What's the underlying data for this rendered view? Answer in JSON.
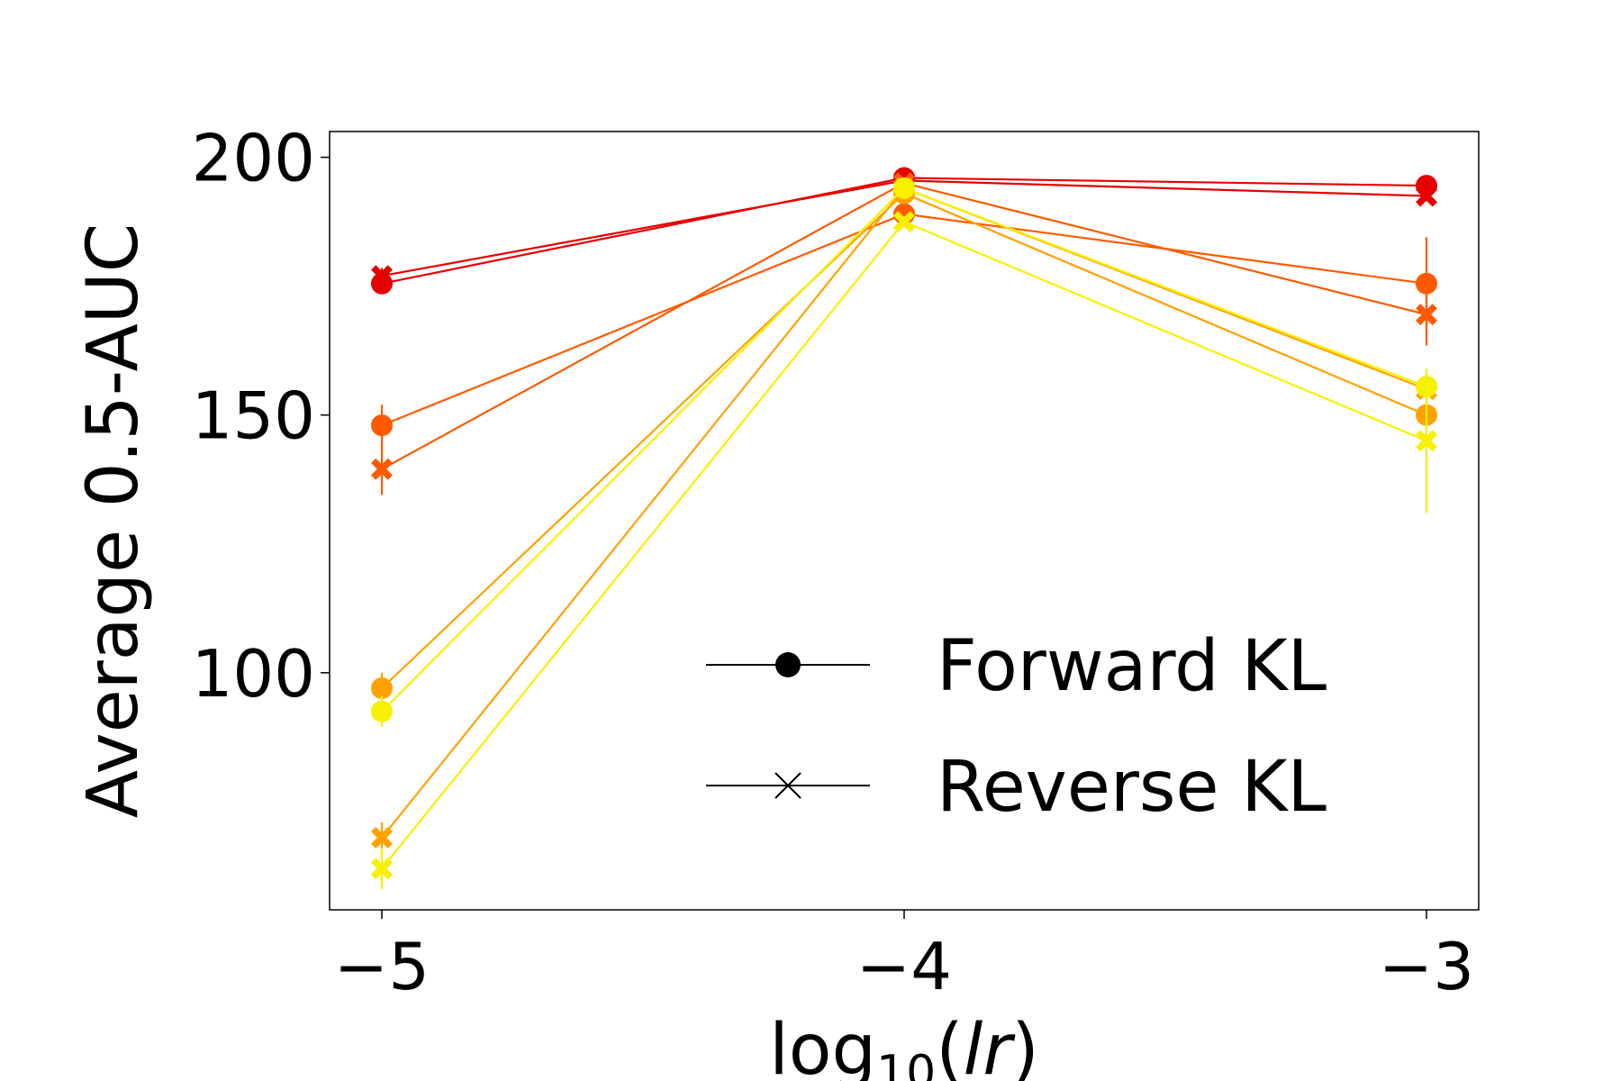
{
  "chart_data": {
    "type": "line",
    "title": "",
    "xlabel": {
      "base": "log",
      "subscript": "10",
      "argument": "lr"
    },
    "ylabel": "Average 0.5-AUC",
    "xlim": [
      -5.1,
      -2.9
    ],
    "ylim": [
      54,
      205
    ],
    "x": [
      -5,
      -4,
      -3
    ],
    "x_tick_labels": [
      "−5",
      "−4",
      "−3"
    ],
    "y_ticks": [
      100,
      150,
      200
    ],
    "y_tick_labels": [
      "100",
      "150",
      "200"
    ],
    "grid": false,
    "legend": {
      "placement": "lower-right",
      "entries": [
        {
          "label": "Forward KL",
          "marker": "circle"
        },
        {
          "label": "Reverse KL",
          "marker": "x"
        }
      ]
    },
    "series": [
      {
        "marker": "circle",
        "color": "#e60000",
        "values": [
          175.5,
          196.0,
          194.5
        ],
        "errors": [
          1.5,
          1.0,
          1.5
        ]
      },
      {
        "marker": "x",
        "color": "#e60000",
        "values": [
          177.0,
          195.5,
          192.5
        ],
        "errors": [
          1.5,
          1.0,
          1.0
        ]
      },
      {
        "marker": "circle",
        "color": "#ff5a00",
        "values": [
          148.0,
          189.0,
          175.5
        ],
        "errors": [
          4.0,
          2.0,
          9.0
        ]
      },
      {
        "marker": "x",
        "color": "#ff5a00",
        "values": [
          139.5,
          195.0,
          169.5
        ],
        "errors": [
          5.0,
          1.0,
          6.0
        ]
      },
      {
        "marker": "circle",
        "color": "#ffa200",
        "values": [
          97.0,
          193.0,
          150.0
        ],
        "errors": [
          3.0,
          1.5,
          3.0
        ]
      },
      {
        "marker": "x",
        "color": "#ffa200",
        "values": [
          68.0,
          194.0,
          155.0
        ],
        "errors": [
          3.0,
          1.0,
          2.0
        ]
      },
      {
        "marker": "circle",
        "color": "#f7f000",
        "values": [
          92.5,
          194.0,
          155.5
        ],
        "errors": [
          3.0,
          1.5,
          2.5
        ]
      },
      {
        "marker": "x",
        "color": "#f7f000",
        "values": [
          62.0,
          187.5,
          145.0
        ],
        "errors": [
          4.0,
          1.0,
          14.0
        ]
      }
    ]
  }
}
